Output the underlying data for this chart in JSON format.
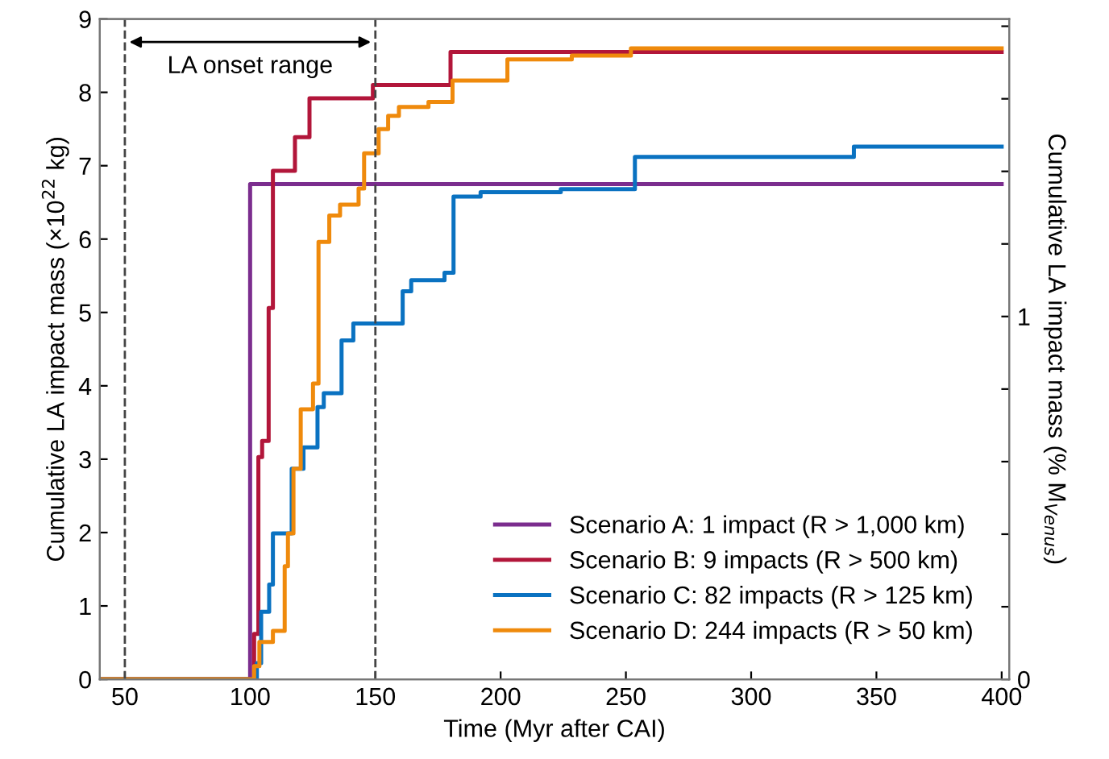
{
  "chart_data": {
    "type": "step",
    "xlabel": "Time (Myr after CAI)",
    "ylabel": "Cumulative LA impact mass (×10$^{22}$ kg)",
    "y2label": "Cumulative LA impact mass (% M$_{Venus}$)",
    "xlim": [
      40,
      403
    ],
    "xticks": [
      50,
      100,
      150,
      200,
      250,
      300,
      350,
      400
    ],
    "ylim": [
      0,
      9
    ],
    "yticks": [
      0,
      1,
      2,
      3,
      4,
      5,
      6,
      7,
      8,
      9
    ],
    "y2lim": [
      0,
      1.82
    ],
    "y2ticks": [
      0,
      {
        "value": 0.2,
        "label": null
      },
      {
        "value": 0.4,
        "label": null
      },
      {
        "value": 0.6,
        "label": null
      },
      {
        "value": 0.8,
        "label": null
      },
      1,
      {
        "value": 1.2,
        "label": null
      },
      {
        "value": 1.4,
        "label": null
      },
      {
        "value": 1.6,
        "label": null
      },
      {
        "value": 1.8,
        "label": null
      }
    ],
    "legend": "bottom right",
    "line_style": "solid",
    "marker": "none",
    "ref_lines": [
      {
        "axis": "x",
        "value": 50,
        "line_style": "dashed",
        "color": "#444444"
      },
      {
        "axis": "x",
        "value": 150,
        "line_style": "dashed",
        "color": "#444444"
      }
    ],
    "annotations": [
      "LA onset range"
    ],
    "grid": false,
    "series": [
      {
        "name": "Scenario A: 1 impact (R > 1,000 km)",
        "color": "#7b2d8e",
        "x": [
          40,
          100,
          400
        ],
        "values": [
          0,
          6.75,
          6.75
        ]
      },
      {
        "name": "Scenario B: 9 impacts (R > 500 km)",
        "color": "#b2163a",
        "x": [
          40,
          101.6,
          103.3,
          104.8,
          107.4,
          109.1,
          117.9,
          123.7,
          149,
          180,
          400
        ],
        "values": [
          0,
          0.62,
          3.03,
          3.25,
          5.06,
          6.93,
          7.39,
          7.92,
          8.1,
          8.55,
          8.55
        ]
      },
      {
        "name": "Scenario C: 82 impacts (R > 125 km)",
        "color": "#0a72c1",
        "x": [
          40,
          102.7,
          104.4,
          107.6,
          109.1,
          116.6,
          121.3,
          126.9,
          129.4,
          136.5,
          141.2,
          160.9,
          164.3,
          177.6,
          181.2,
          192,
          224,
          253.6,
          341,
          400
        ],
        "values": [
          0,
          0.22,
          0.92,
          1.29,
          1.99,
          2.87,
          3.16,
          3.71,
          3.9,
          4.62,
          4.85,
          5.29,
          5.44,
          5.54,
          6.58,
          6.64,
          6.68,
          7.12,
          7.26,
          7.26
        ]
      },
      {
        "name": "Scenario D: 244 impacts (R > 50 km)",
        "color": "#ef8a0c",
        "x": [
          40,
          101.6,
          103.7,
          109.1,
          113.8,
          115.1,
          117.3,
          120.2,
          125.1,
          127.3,
          131.6,
          135.9,
          143.3,
          145.5,
          151.3,
          155.1,
          159.4,
          171.2,
          180.8,
          202.7,
          228.4,
          252,
          400
        ],
        "values": [
          0,
          0.18,
          0.51,
          0.66,
          1.54,
          1.99,
          2.87,
          3.68,
          4.03,
          5.96,
          6.32,
          6.47,
          6.69,
          7.17,
          7.5,
          7.68,
          7.8,
          7.87,
          8.16,
          8.45,
          8.5,
          8.6,
          8.6
        ]
      }
    ]
  }
}
